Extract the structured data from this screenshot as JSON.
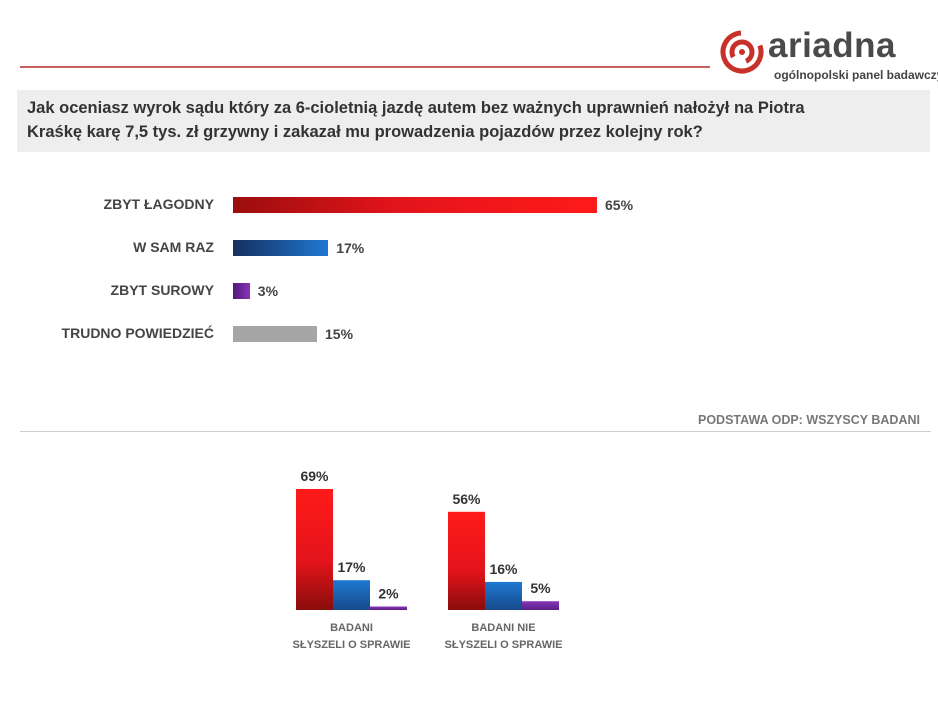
{
  "brand": {
    "name": "ariadna",
    "tagline": "ogólnopolski panel badawczy"
  },
  "question": {
    "line1": "Jak oceniasz wyrok sądu który za 6-cioletnią jazdę autem bez ważnych uprawnień nałożył na Piotra",
    "line2": "Kraśkę karę 7,5 tys. zł grzywny i zakazał mu prowadzenia pojazdów przez kolejny rok?"
  },
  "basis": "PODSTAWA ODP: WSZYSCY BADANI",
  "colors": {
    "red": "#e8201c",
    "blue": "#1f6bb8",
    "purple": "#7a2c9e",
    "gray": "#a6a6a6"
  },
  "chart_data": [
    {
      "type": "bar",
      "orientation": "horizontal",
      "categories": [
        "ZBYT ŁAGODNY",
        "W SAM RAZ",
        "ZBYT SUROWY",
        "TRUDNO POWIEDZIEĆ"
      ],
      "values": [
        65,
        17,
        3,
        15
      ],
      "value_labels": [
        "65%",
        "17%",
        "3%",
        "15%"
      ],
      "bar_colors": [
        "red",
        "blue",
        "purple",
        "gray"
      ]
    },
    {
      "type": "bar",
      "orientation": "vertical",
      "groups": [
        {
          "label_line1": "BADANI",
          "label_line2": "SŁYSZELI O SPRAWIE",
          "values": [
            69,
            17,
            2
          ],
          "value_labels": [
            "69%",
            "17%",
            "2%"
          ]
        },
        {
          "label_line1": "BADANI  NIE",
          "label_line2": "SŁYSZELI O SPRAWIE",
          "values": [
            56,
            16,
            5
          ],
          "value_labels": [
            "56%",
            "16%",
            "5%"
          ]
        }
      ],
      "bar_colors": [
        "red",
        "blue",
        "purple"
      ]
    }
  ]
}
